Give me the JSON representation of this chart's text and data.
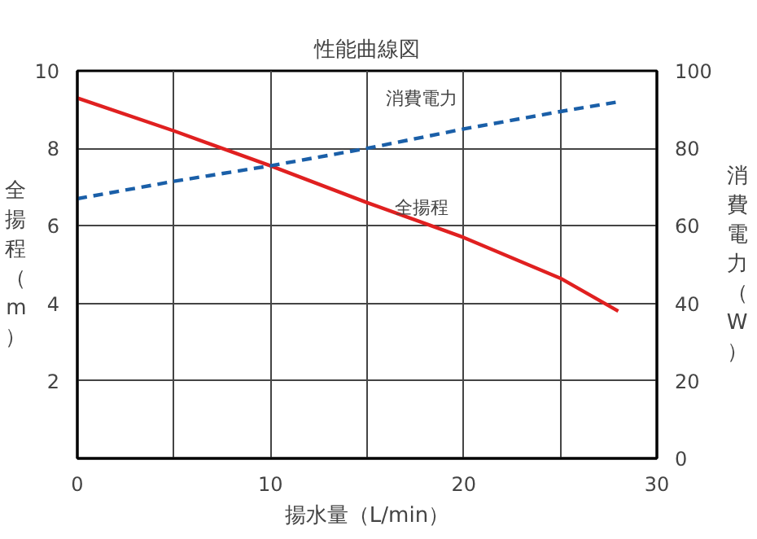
{
  "chart_data": {
    "type": "line",
    "title": "性能曲線図",
    "xlabel": "揚水量（L/min）",
    "ylabel": "全揚程（m）",
    "y2label": "消費電力（W）",
    "x": [
      0,
      5,
      10,
      15,
      20,
      25,
      28
    ],
    "series": [
      {
        "name": "全揚程",
        "color": "#e02020",
        "values": [
          9.3,
          8.45,
          7.55,
          6.6,
          5.7,
          4.65,
          3.8
        ]
      },
      {
        "name": "消費電力",
        "color": "#1a5fa8",
        "axis": "y2",
        "line_style": "dashed",
        "values": [
          67,
          71.5,
          75.5,
          80,
          85,
          89.5,
          92
        ]
      }
    ],
    "xlim": [
      0,
      30
    ],
    "xticks": [
      0,
      {
        "value": 5,
        "label": null
      },
      10,
      {
        "value": 15,
        "label": null
      },
      20,
      {
        "value": 25,
        "label": null
      },
      30
    ],
    "ylim": [
      0,
      10
    ],
    "yticks": [
      2,
      4,
      6,
      8,
      10
    ],
    "y2lim": [
      0,
      100
    ],
    "y2ticks": [
      0,
      20,
      40,
      60,
      80,
      100
    ],
    "grid": true,
    "marker": "none",
    "line_style": "solid"
  }
}
